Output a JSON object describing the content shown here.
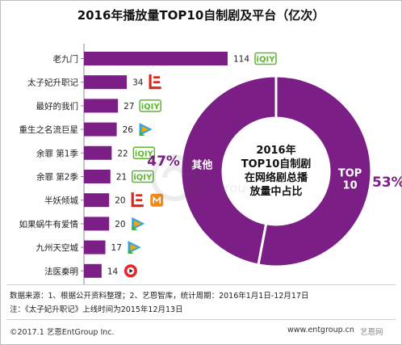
{
  "title": "2016年播放量TOP10自制剧及平台（亿次）",
  "chart_data": [
    {
      "type": "bar",
      "categories": [
        "老九门",
        "太子妃升职记",
        "最好的我们",
        "重生之名流巨星",
        "余罪 第1季",
        "余罪 第2季",
        "半妖倾城",
        "如果蜗牛有爱情",
        "九州天空城",
        "法医秦明"
      ],
      "values": [
        114,
        34,
        27,
        26,
        22,
        21,
        20,
        20,
        17,
        14
      ],
      "xlim": [
        0,
        114
      ],
      "bar_color": "#7b1f86",
      "platforms": [
        [
          "iqiyi-icon"
        ],
        [
          "letv-icon"
        ],
        [
          "iqiyi-icon"
        ],
        [
          "tencent-video-icon"
        ],
        [
          "iqiyi-icon"
        ],
        [
          "iqiyi-icon"
        ],
        [
          "letv-icon",
          "mango-tv-icon"
        ],
        [
          "tencent-video-icon"
        ],
        [
          "tencent-video-icon"
        ],
        [
          "sohu-video-icon"
        ]
      ]
    },
    {
      "type": "pie",
      "style": "donut",
      "center_text": [
        "2016年",
        "TOP10自制剧",
        "在网络剧总播",
        "放量中占比"
      ],
      "slices": [
        {
          "label": "TOP\n10",
          "value": 53,
          "value_label": "53%",
          "color": "#7b1f86"
        },
        {
          "label": "其他",
          "value": 47,
          "value_label": "47%",
          "color": "#7b1f86"
        }
      ]
    }
  ],
  "source_line1": "数据来源：1、根据公开资料整理；2、艺恩智库，统计周期：2016年1月1日-12月17日",
  "source_line2": "注：《太子妃升职记》上线时间为2015年12月13日",
  "footer_left": "©2017.1  艺恩EntGroup Inc.",
  "footer_right": "www.entgroup.cn",
  "watermark_text": "entgroup",
  "footer_watermark": "艺恩网",
  "colors": {
    "accent": "#7b1f86",
    "percent_text": "#7b1f86"
  }
}
